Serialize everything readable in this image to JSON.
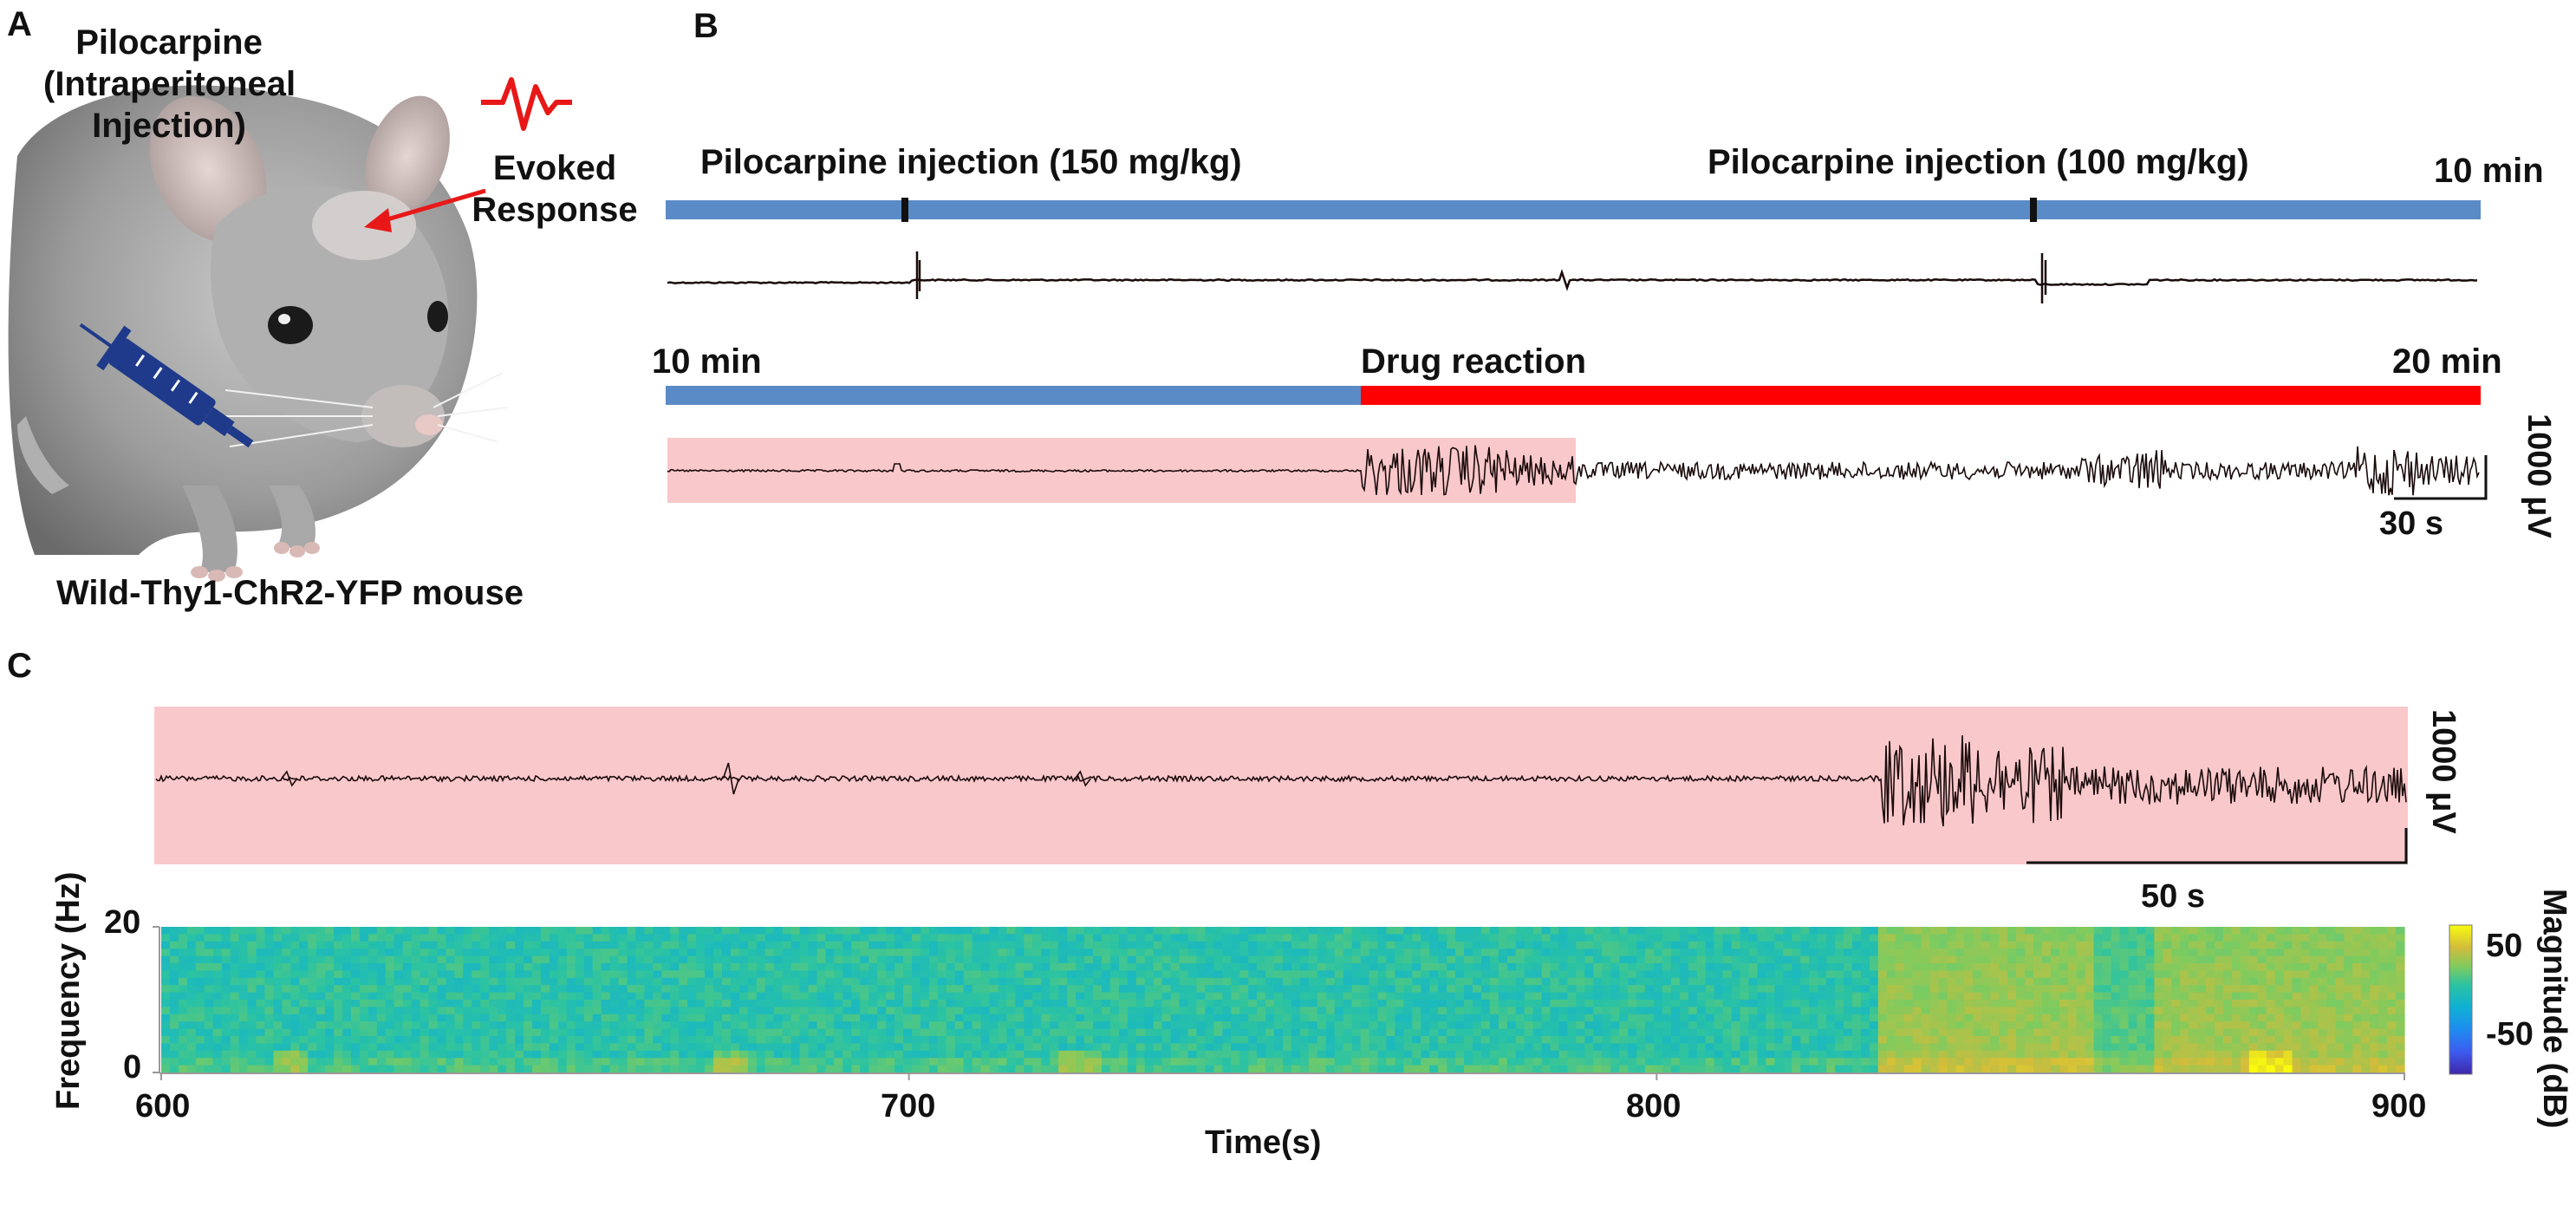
{
  "panels": {
    "a": {
      "letter": "A",
      "pilocarpine_lines": [
        "Pilocarpine",
        "(Intraperitoneal",
        "Injection)"
      ],
      "evoked_lines": [
        "Evoked",
        "Response"
      ],
      "mouse_label": "Wild-Thy1-ChR2-YFP  mouse"
    },
    "b": {
      "letter": "B",
      "injection1": "Pilocarpine  injection  (150 mg/kg)",
      "injection2": "Pilocarpine  injection  (100 mg/kg)",
      "row1_end": "10 min",
      "row2_start": "10 min",
      "drug_reaction": "Drug reaction",
      "row2_end": "20 min",
      "scale_amplitude": "1000 μV",
      "scale_time": "30 s"
    },
    "c": {
      "letter": "C",
      "scale_amplitude": "1000 μV",
      "scale_time": "50 s",
      "colorbar_label": "Magnitude  (dB)"
    }
  },
  "colors": {
    "timeline_blue": "#5b8bc6",
    "timeline_red": "#ff0000",
    "highlight_pink": "#f9c8cb",
    "trace": "#1a0a0a",
    "syringe": "#1f3a8a",
    "arrow": "#e81818"
  },
  "chart_data": {
    "type": "heatmap",
    "title": "",
    "xlabel": "Time(s)",
    "ylabel": "Frequency (Hz)",
    "xlim": [
      600,
      900
    ],
    "ylim": [
      0,
      20
    ],
    "x_ticks": [
      600,
      700,
      800,
      900
    ],
    "y_ticks": [
      0,
      20
    ],
    "colorbar": {
      "label": "Magnitude  (dB)",
      "ticks": [
        50,
        -50
      ],
      "range": [
        -75,
        60
      ]
    },
    "seizure_onset_s": 830,
    "transient_events_s": [
      617,
      676,
      723,
      882
    ]
  }
}
